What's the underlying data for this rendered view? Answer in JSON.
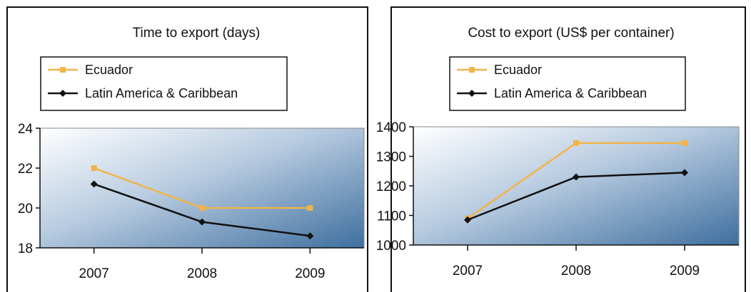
{
  "chart_data": [
    {
      "type": "line",
      "title": "Time to export (days)",
      "x": [
        "2007",
        "2008",
        "2009"
      ],
      "ylim": [
        18,
        24
      ],
      "yticks": [
        18,
        20,
        22,
        24
      ],
      "legend": "top-left",
      "grid": false,
      "series": [
        {
          "name": "Ecuador",
          "values": [
            22,
            20,
            20
          ],
          "color": "#f0b44a"
        },
        {
          "name": "Latin America & Caribbean",
          "values": [
            21.2,
            19.3,
            18.6
          ],
          "color": "#111111"
        }
      ]
    },
    {
      "type": "line",
      "title": "Cost to export (US$ per container)",
      "x": [
        "2007",
        "2008",
        "2009"
      ],
      "ylim": [
        1000,
        1400
      ],
      "yticks": [
        1000,
        1100,
        1200,
        1300,
        1400
      ],
      "legend": "top-left",
      "grid": false,
      "series": [
        {
          "name": "Ecuador",
          "values": [
            1090,
            1345,
            1345
          ],
          "color": "#f0b44a"
        },
        {
          "name": "Latin America & Caribbean",
          "values": [
            1085,
            1230,
            1245
          ],
          "color": "#111111"
        }
      ]
    }
  ]
}
